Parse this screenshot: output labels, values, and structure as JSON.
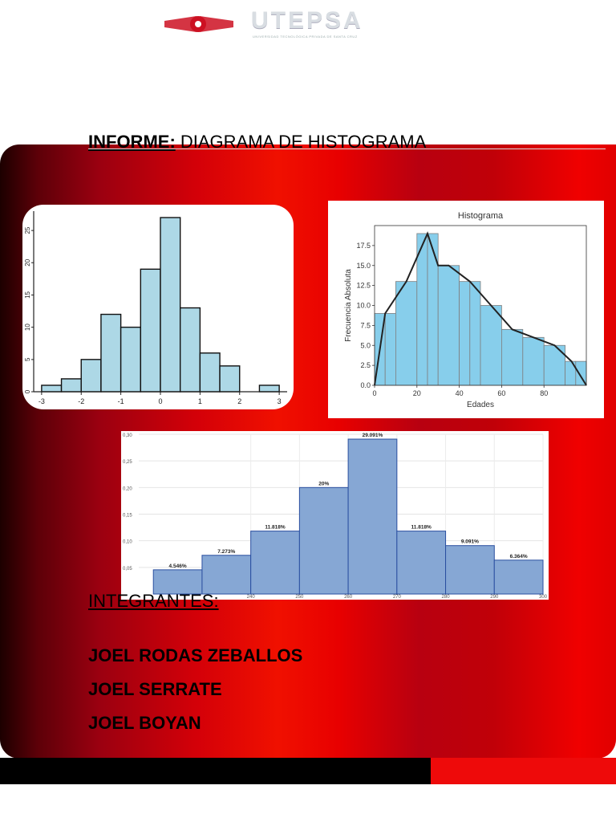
{
  "header": {
    "logo": {
      "brand_text": "UTEPSA",
      "tagline": "UNIVERSIDAD TECNOLÓGICA PRIVADA DE SANTA CRUZ"
    },
    "title_label": "INFORME:",
    "title_text": " DIAGRAMA DE HISTOGRAMA"
  },
  "colors": {
    "red": "#e00000",
    "dark_red": "#5c0008",
    "bar_light_blue": "#add8e6",
    "bar_sky_blue": "#87ceeb",
    "bar_steel_blue": "#86a7d4"
  },
  "members": {
    "title": "INTEGRANTES:",
    "names": [
      "JOEL RODAS ZEBALLOS",
      "JOEL SERRATE",
      "JOEL BOYAN"
    ]
  },
  "chart_data": [
    {
      "type": "bar",
      "title": "",
      "bin_edges": [
        -3,
        -2.5,
        -2,
        -1.5,
        -1,
        -0.5,
        0,
        0.5,
        1,
        1.5,
        2,
        2.5,
        3
      ],
      "values": [
        1,
        2,
        5,
        12,
        10,
        19,
        27,
        13,
        6,
        4,
        0,
        1
      ],
      "xticks": [
        -3,
        -2,
        -1,
        0,
        1,
        2,
        3
      ],
      "yticks": [
        0,
        5,
        10,
        15,
        20,
        25
      ],
      "xlim": [
        -3.2,
        3.2
      ],
      "ylim": [
        0,
        28
      ],
      "xlabel": "",
      "ylabel": "",
      "grid": false
    },
    {
      "type": "bar",
      "title": "Histograma",
      "bin_edges": [
        0,
        5,
        10,
        20,
        25,
        30,
        40,
        45,
        50,
        60,
        70,
        80,
        90,
        95,
        100
      ],
      "values": [
        9,
        9,
        13,
        19,
        19,
        15,
        13,
        13,
        10,
        7,
        6,
        5,
        3,
        3
      ],
      "polygon_x": [
        0,
        5,
        15,
        25,
        30,
        35,
        45,
        55,
        65,
        75,
        85,
        93,
        100
      ],
      "polygon_y": [
        0,
        9,
        13,
        19,
        15,
        15,
        13,
        10,
        7,
        6,
        5,
        3,
        0
      ],
      "xticks": [
        0,
        20,
        40,
        60,
        80
      ],
      "yticks": [
        "0.0",
        "2.5",
        "5.0",
        "7.5",
        "10.0",
        "12.5",
        "15.0",
        "17.5"
      ],
      "xlim": [
        0,
        100
      ],
      "ylim": [
        0,
        20
      ],
      "xlabel": "Edades",
      "ylabel": "Frecuencia Absoluta",
      "grid": false
    },
    {
      "type": "bar",
      "title": "",
      "bin_edges": [
        220,
        230,
        240,
        250,
        260,
        270,
        280,
        290,
        300
      ],
      "values": [
        0.04546,
        0.07273,
        0.11818,
        0.2,
        0.29091,
        0.11818,
        0.09091,
        0.06364
      ],
      "data_labels": [
        "4.546%",
        "7.273%",
        "11.818%",
        "20%",
        "29.091%",
        "11.818%",
        "9.091%",
        "6.364%"
      ],
      "xticks": [
        "240",
        "250",
        "260",
        "270",
        "280",
        "290",
        "300"
      ],
      "yticks": [
        "0,05",
        "0,10",
        "0,15",
        "0,20",
        "0,25",
        "0,30"
      ],
      "xlim": [
        217,
        300
      ],
      "ylim": [
        0,
        0.3
      ],
      "xlabel": "",
      "ylabel": "",
      "grid": true
    }
  ]
}
